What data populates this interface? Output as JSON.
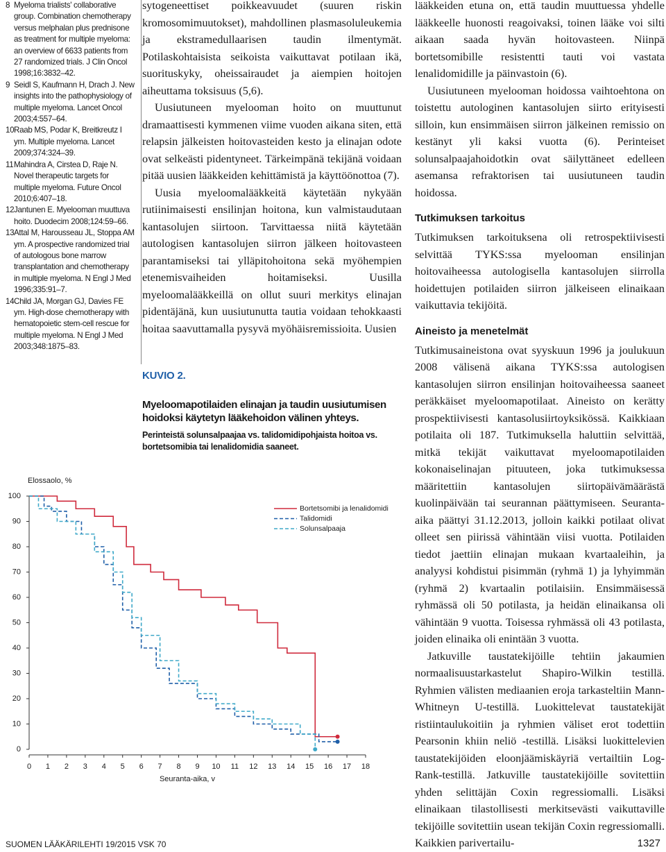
{
  "references": [
    {
      "number": "8",
      "text": "Myeloma trialists' collaborative group. Combination chemotherapy versus melphalan plus prednisone as treatment for multiple myeloma: an overview of 6633 patients from 27 randomized trials. J Clin Oncol 1998;16:3832–42."
    },
    {
      "number": "9",
      "text": "Seidl S, Kaufmann H, Drach J. New insights into the pathophysiology of multiple myeloma. Lancet Oncol 2003;4:557–64."
    },
    {
      "number": "10",
      "text": "Raab MS, Podar K, Breitkreutz I ym. Multiple myeloma. Lancet 2009;374:324–39."
    },
    {
      "number": "11",
      "text": "Mahindra A, Cirstea D, Raje N. Novel therapeutic targets for multiple myeloma. Future Oncol 2010;6:407–18."
    },
    {
      "number": "12",
      "text": "Jantunen E. Myelooman muuttuva hoito. Duodecim 2008;124:59–66."
    },
    {
      "number": "13",
      "text": "Attal M, Harousseau JL, Stoppa AM ym. A prospective randomized trial of autologous bone marrow transplantation and chemotherapy in multiple myeloma. N Engl J Med 1996;335:91–7."
    },
    {
      "number": "14",
      "text": "Child JA, Morgan GJ, Davies FE ym. High-dose chemotherapy with hematopoietic stem-cell rescue for multiple myeloma. N Engl J Med 2003;348:1875–83."
    }
  ],
  "middle_column": [
    "sytogeneettiset poikkeavuudet (suuren riskin kromosomimuutokset), mahdollinen plasmasoluleukemia ja ekstramedullaarisen taudin ilmentymät. Potilaskohtaisista seikoista vaikuttavat potilaan ikä, suorituskyky, oheissairaudet ja aiempien hoitojen aiheuttama toksisuus (5,6).",
    "Uusiutuneen myelooman hoito on muuttunut dramaattisesti kymmenen viime vuoden aikana siten, että relapsin jälkeisten hoitovasteiden kesto ja elinajan odote ovat selkeästi pidentyneet. Tärkeimpänä tekijänä voidaan pitää uusien lääkkeiden kehittämistä ja käyttöönottoa (7).",
    "Uusia myeloomalääkkeitä käytetään nykyään rutiinimaisesti ensilinjan hoitona, kun valmistaudutaan kantasolujen siirtoon. Tarvittaessa niitä käytetään autologisen kantasolujen siirron jälkeen hoitovasteen parantamiseksi tai ylläpitohoitona sekä myöhempien etenemisvaiheiden hoitamiseksi. Uusilla myeloomalääkkeillä on ollut suuri merkitys elinajan pidentäjänä, kun uusiutunutta tautia voidaan tehokkaasti hoitaa saavuttamalla pysyvä myöhäisremissioita. Uusien"
  ],
  "right_column": {
    "intro": [
      "lääkkeiden etuna on, että taudin muuttuessa yhdelle lääkkeelle huonosti reagoivaksi, toinen lääke voi silti aikaan saada hyvän hoitovasteen. Niinpä bortetsomibille resistentti tauti voi vastata lenalidomidille ja päinvastoin (6).",
      "Uusiutuneen myelooman hoidossa vaihtoehtona on toistettu autologinen kantasolujen siirto erityisesti silloin, kun ensimmäisen siirron jälkeinen remissio on kestänyt yli kaksi vuotta (6). Perinteiset solunsalpaajahoidotkin ovat säilyttäneet edelleen asemansa refraktorisen tai uusiutuneen taudin hoidossa."
    ],
    "sections": [
      {
        "heading": "Tutkimuksen tarkoitus",
        "paragraphs": [
          "Tutkimuksen tarkoituksena oli retrospektiivisesti selvittää TYKS:ssa myelooman ensilinjan hoitovaiheessa autologisella kantasolujen siirrolla hoidettujen potilaiden siirron jälkeiseen elinaikaan vaikuttavia tekijöitä."
        ]
      },
      {
        "heading": "Aineisto ja menetelmät",
        "paragraphs": [
          "Tutkimusaineistona ovat syyskuun 1996 ja joulukuun 2008 välisenä aikana TYKS:ssa autologisen kantasolujen siirron ensilinjan hoitovaiheessa saaneet peräkkäiset myeloomapotilaat. Aineisto on kerätty prospektiivisesti kantasolusiirtoyksikössä. Kaikkiaan potilaita oli 187. Tutkimuksella haluttiin selvittää, mitkä tekijät vaikuttavat myeloomapotilaiden kokonaiselinajan pituuteen, joka tutkimuksessa määritettiin kantasolujen siirtopäivämäärästä kuolinpäivään tai seurannan päättymiseen. Seuranta-aika päättyi 31.12.2013, jolloin kaikki potilaat olivat olleet sen piirissä vähintään viisi vuotta. Potilaiden tiedot jaettiin elinajan mukaan kvartaaleihin, ja analyysi kohdistui pisimmän (ryhmä 1) ja lyhyimmän (ryhmä 2) kvartaalin potilaisiin. Ensimmäisessä ryhmässä oli 50 potilasta, ja heidän elinaikansa oli vähintään 9 vuotta. Toisessa ryhmässä oli 43 potilasta, joiden elinaika oli enintään 3 vuotta.",
          "Jatkuville taustatekijöille tehtiin jakaumien normaalisuustarkastelut Shapiro-Wilkin testillä. Ryhmien välisten mediaanien eroja tarkasteltiin Mann-Whitneyn U-testillä. Luokittelevat taustatekijät ristiintaulukoitiin ja ryhmien väliset erot todettiin Pearsonin khiin neliö -testillä. Lisäksi luokittelevien taustatekijöiden eloonjäämiskäyriä vertailtiin Log-Rank-testillä. Jatkuville taustatekijöille sovitettiin yhden selittäjän Coxin regressiomalli. Lisäksi elinaikaan tilastollisesti merkitsevästi vaikuttaville tekijöille sovitettiin usean tekijän Coxin regressiomalli. Kaikkien parivertailu-"
        ]
      }
    ]
  },
  "figure": {
    "label": "KUVIO 2.",
    "title": "Myeloomapotilaiden elinajan ja taudin uusiutumisen hoidoksi käytetyn lääkehoidon välinen yhteys.",
    "subtitle": "Perinteistä solunsalpaajaa vs. talidomidipohjaista hoitoa vs. bortetsomibia tai lenalidomidia saaneet.",
    "chart": {
      "type": "step",
      "y_label": "Elossaolo, %",
      "x_label": "Seuranta-aika, v",
      "xlim": [
        0,
        18
      ],
      "xticks": [
        0,
        1,
        2,
        3,
        4,
        5,
        6,
        7,
        8,
        9,
        10,
        11,
        12,
        13,
        14,
        15,
        16,
        17,
        18
      ],
      "ylim": [
        0,
        100
      ],
      "yticks": [
        0,
        10,
        20,
        30,
        40,
        50,
        60,
        70,
        80,
        90,
        100
      ],
      "series": [
        {
          "name": "Bortetsomibi ja lenalidomidi",
          "color": "#cf2a3c",
          "dash": false,
          "x": [
            0,
            1.5,
            2.5,
            3.5,
            4.5,
            5.2,
            5.6,
            6.5,
            7.2,
            8,
            9.2,
            10.5,
            11.2,
            12.2,
            13.3,
            13.8,
            15.3,
            16.5
          ],
          "y": [
            100,
            98,
            95,
            92,
            88,
            80,
            73,
            70,
            67,
            63,
            60,
            57,
            55,
            50,
            40,
            38,
            5,
            5
          ]
        },
        {
          "name": "Talidomidi",
          "color": "#1f5fa8",
          "dash": true,
          "x": [
            0,
            0.8,
            1.2,
            2,
            2.8,
            3.5,
            4,
            4.5,
            5,
            5.5,
            6,
            6.8,
            7.5,
            9,
            10,
            11,
            12,
            13,
            14,
            15.5,
            16.5
          ],
          "y": [
            100,
            96,
            94,
            90,
            85,
            80,
            73,
            65,
            55,
            48,
            40,
            32,
            26,
            20,
            16,
            13,
            10,
            8,
            6,
            3,
            3
          ]
        },
        {
          "name": "Solunsalpaaja",
          "color": "#3fa9c9",
          "dash": true,
          "x": [
            0,
            0.5,
            1.5,
            2.5,
            3.5,
            4.5,
            5,
            5.5,
            6,
            7,
            8,
            9,
            10,
            11,
            12,
            13,
            14.5,
            15.3
          ],
          "y": [
            100,
            95,
            90,
            85,
            78,
            70,
            62,
            52,
            45,
            35,
            27,
            22,
            18,
            15,
            12,
            10,
            6,
            0
          ]
        }
      ]
    }
  },
  "footer": {
    "publication": "SUOMEN LÄÄKÄRILEHTI 19/2015 VSK 70",
    "page": "1327"
  }
}
